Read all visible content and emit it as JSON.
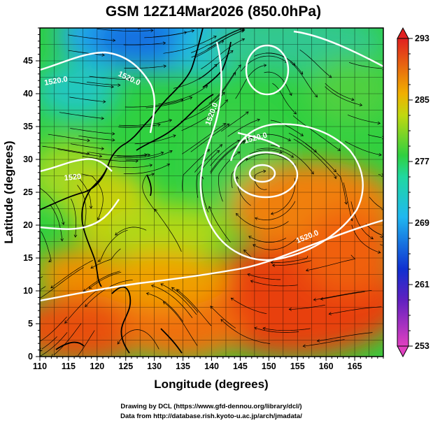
{
  "title": "GSM 12Z14Mar2026 (850.0hPa)",
  "xaxis_label": "Longitude (degrees)",
  "yaxis_label": "Latitude  (degrees)",
  "x_ticks": [
    "110",
    "115",
    "120",
    "125",
    "130",
    "135",
    "140",
    "145",
    "150",
    "155",
    "160",
    "165"
  ],
  "y_ticks": [
    "0",
    "5",
    "10",
    "15",
    "20",
    "25",
    "30",
    "35",
    "40",
    "45"
  ],
  "colorbar": {
    "labels": [
      "253",
      "261",
      "269",
      "277",
      "285",
      "293"
    ],
    "min": 253,
    "max": 293,
    "colors": [
      "#e040c0",
      "#1020c0",
      "#20b0f0",
      "#30d040",
      "#f0b000",
      "#e02020"
    ]
  },
  "contour_labels": [
    "1520.0",
    "1520.0",
    "1520",
    "1520.0",
    "1520.0",
    "1520.0"
  ],
  "credit_line1": "Drawing by DCL (https://www.gfd-dennou.org/library/dcl/)",
  "credit_line2": "Data from http://database.rish.kyoto-u.ac.jp/arch/jmadata/",
  "chart_data": {
    "type": "heatmap",
    "title": "GSM 12Z14Mar2026 (850.0hPa)",
    "xlabel": "Longitude (degrees)",
    "ylabel": "Latitude  (degrees)",
    "xlim": [
      110,
      170
    ],
    "ylim": [
      0,
      50
    ],
    "colorbar_range": [
      253,
      293
    ],
    "contour_value": 1520.0,
    "layers": [
      "temperature shading (K)",
      "geopotential height contours (m)",
      "wind streamlines"
    ]
  }
}
